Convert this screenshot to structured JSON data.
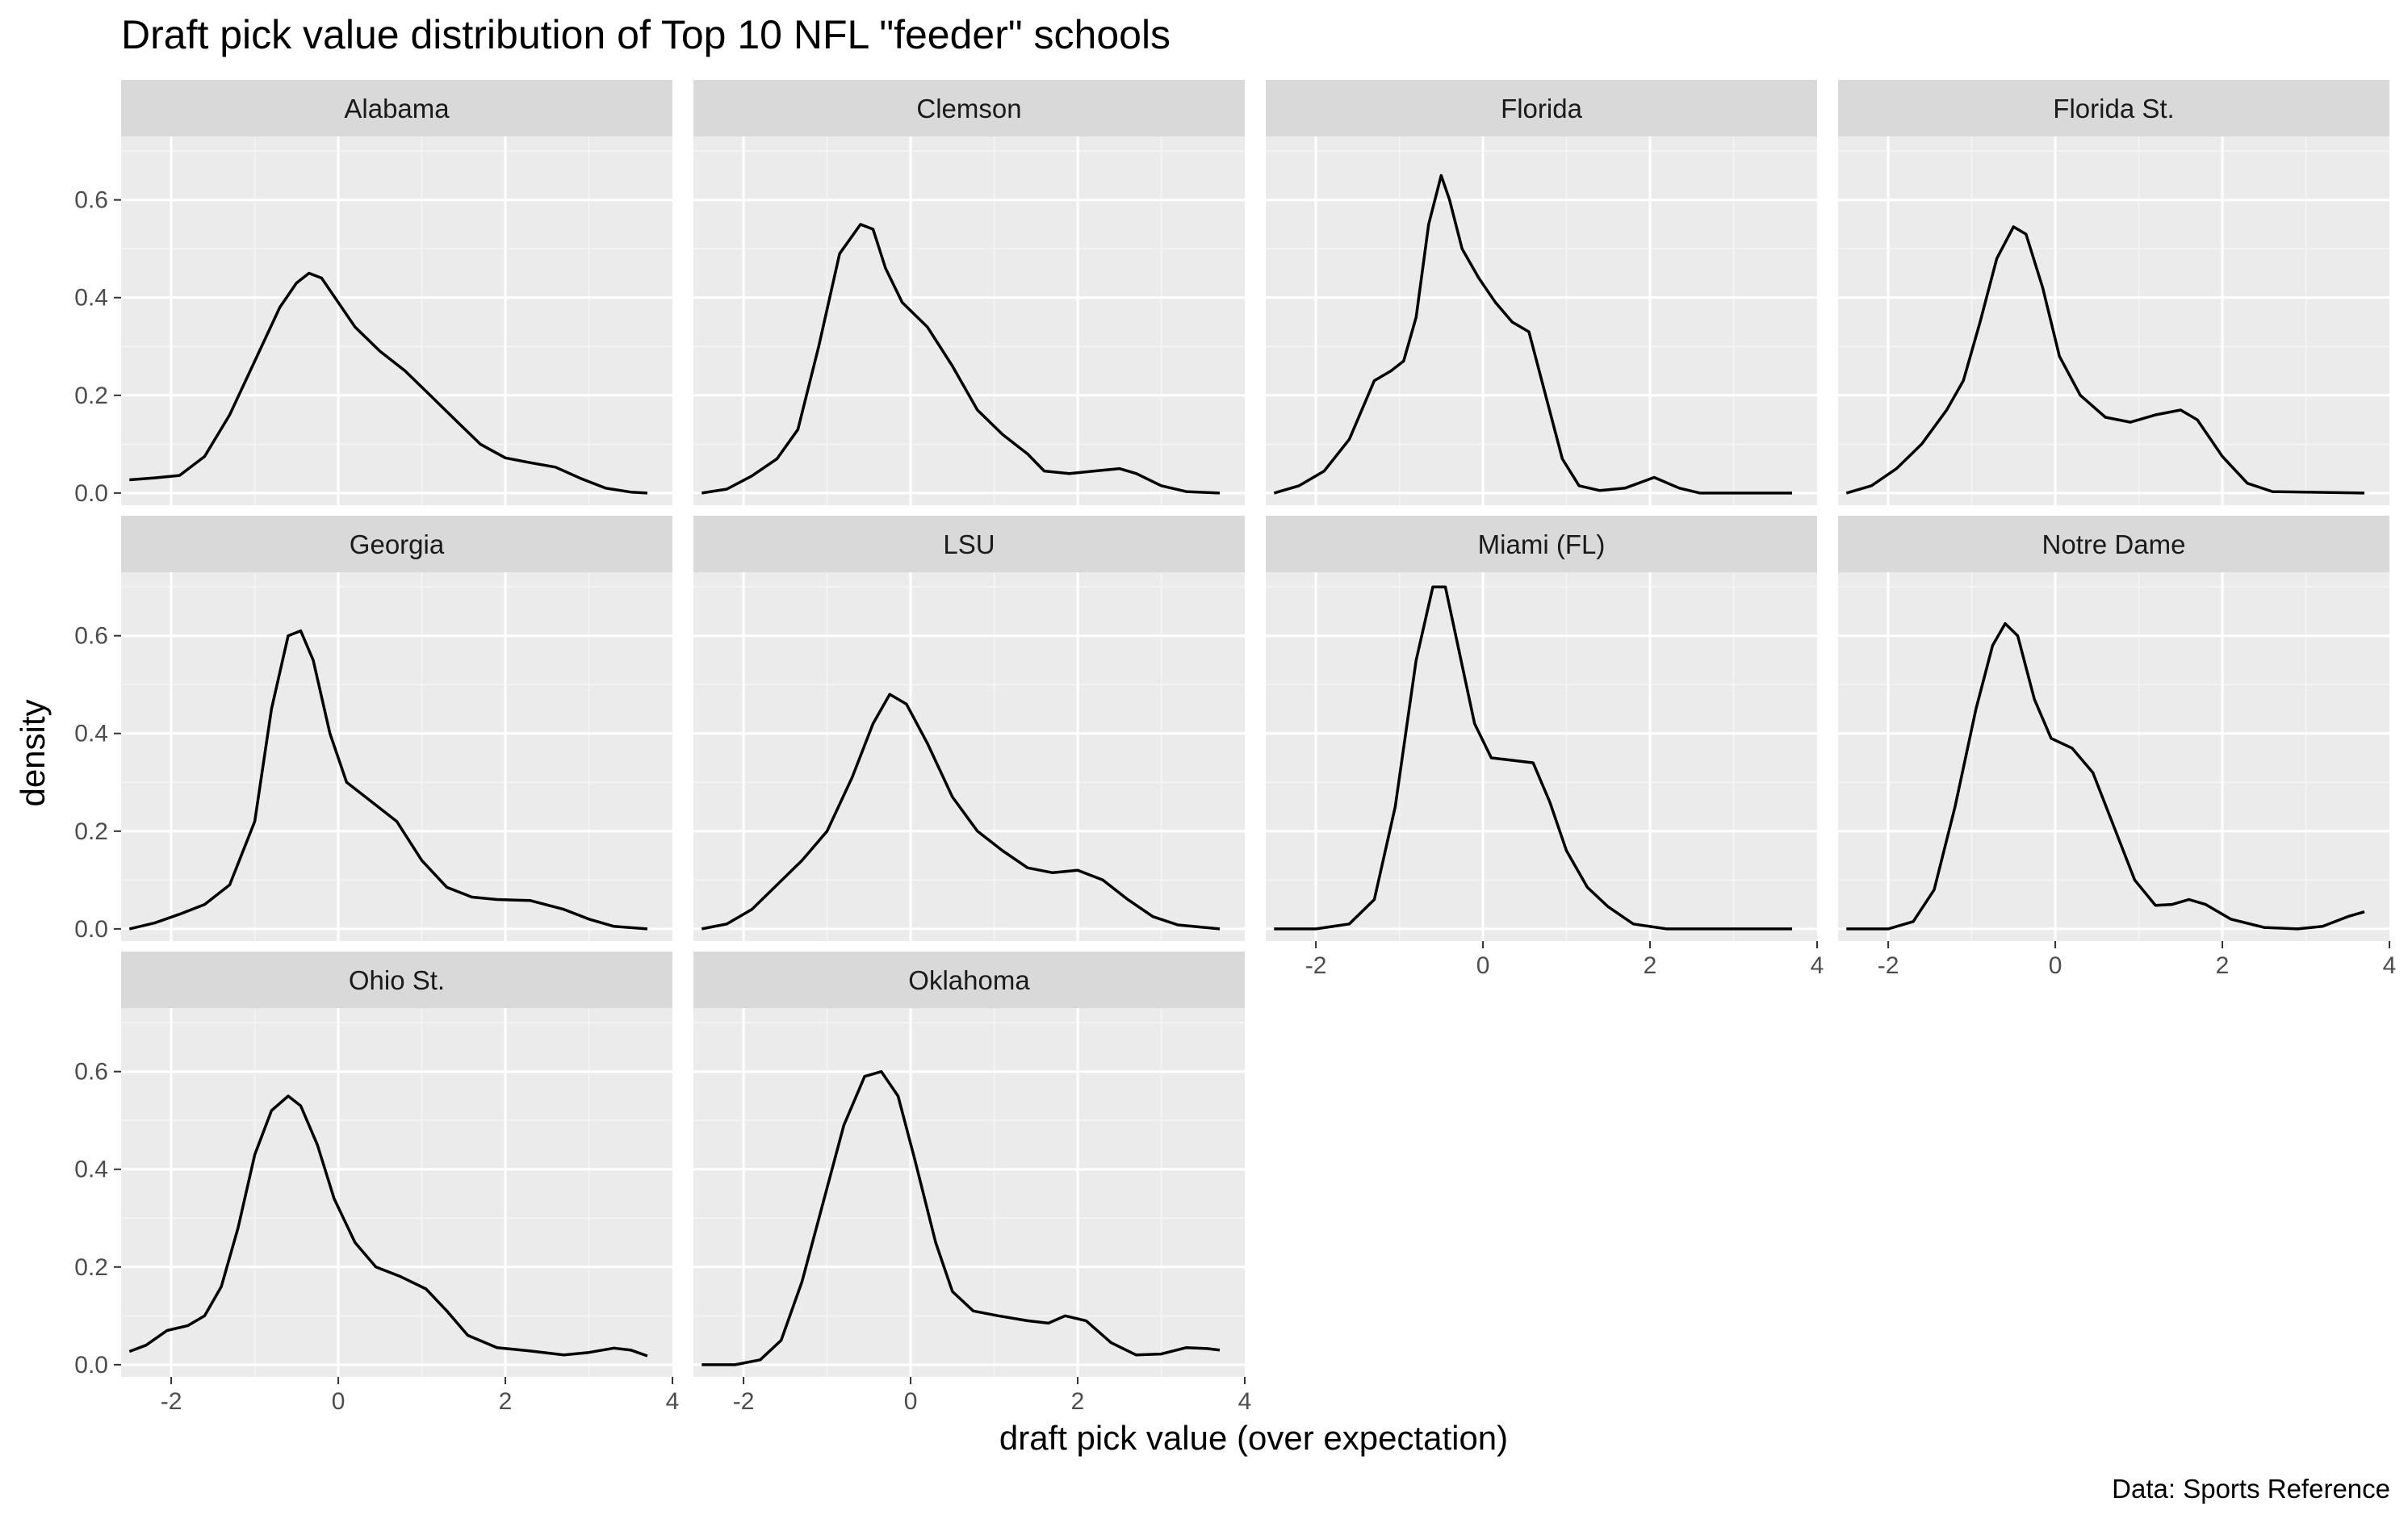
{
  "title": "Draft pick value distribution of Top 10 NFL \"feeder\" schools",
  "caption": "Data: Sports Reference",
  "colors": {
    "panel_background": "#ebebeb",
    "strip_background": "#d9d9d9",
    "grid_major": "#ffffff",
    "grid_minor": "#f5f5f5",
    "line": "#000000",
    "tick_text": "#4d4d4d"
  },
  "chart_data": {
    "type": "line",
    "kind": "density (faceted, 4 columns)",
    "xlabel": "draft pick value (over expectation)",
    "ylabel": "density",
    "xlim": [
      -2.6,
      4.0
    ],
    "ylim": [
      -0.025,
      0.73
    ],
    "x_ticks": [
      -2,
      0,
      2,
      4
    ],
    "x_tick_labels": [
      "-2",
      "0",
      "2",
      "4"
    ],
    "y_ticks": [
      0.0,
      0.2,
      0.4,
      0.6
    ],
    "y_tick_labels": [
      "0.0",
      "0.2",
      "0.4",
      "0.6"
    ],
    "grid": true,
    "legend": "none",
    "series": [
      {
        "name": "Alabama",
        "points": [
          [
            -2.5,
            0.027
          ],
          [
            -2.2,
            0.031
          ],
          [
            -1.9,
            0.036
          ],
          [
            -1.6,
            0.075
          ],
          [
            -1.3,
            0.16
          ],
          [
            -1.0,
            0.27
          ],
          [
            -0.7,
            0.38
          ],
          [
            -0.5,
            0.43
          ],
          [
            -0.35,
            0.45
          ],
          [
            -0.2,
            0.44
          ],
          [
            0.0,
            0.39
          ],
          [
            0.2,
            0.34
          ],
          [
            0.5,
            0.29
          ],
          [
            0.8,
            0.25
          ],
          [
            1.1,
            0.2
          ],
          [
            1.4,
            0.15
          ],
          [
            1.7,
            0.1
          ],
          [
            2.0,
            0.072
          ],
          [
            2.3,
            0.062
          ],
          [
            2.6,
            0.053
          ],
          [
            2.9,
            0.03
          ],
          [
            3.2,
            0.01
          ],
          [
            3.5,
            0.002
          ],
          [
            3.7,
            0.0
          ]
        ]
      },
      {
        "name": "Clemson",
        "points": [
          [
            -2.5,
            0.0
          ],
          [
            -2.2,
            0.008
          ],
          [
            -1.9,
            0.035
          ],
          [
            -1.6,
            0.07
          ],
          [
            -1.35,
            0.13
          ],
          [
            -1.1,
            0.3
          ],
          [
            -0.85,
            0.49
          ],
          [
            -0.6,
            0.55
          ],
          [
            -0.45,
            0.54
          ],
          [
            -0.3,
            0.46
          ],
          [
            -0.1,
            0.39
          ],
          [
            0.2,
            0.34
          ],
          [
            0.5,
            0.26
          ],
          [
            0.8,
            0.17
          ],
          [
            1.1,
            0.12
          ],
          [
            1.4,
            0.08
          ],
          [
            1.6,
            0.045
          ],
          [
            1.9,
            0.04
          ],
          [
            2.2,
            0.045
          ],
          [
            2.5,
            0.05
          ],
          [
            2.7,
            0.04
          ],
          [
            3.0,
            0.015
          ],
          [
            3.3,
            0.003
          ],
          [
            3.7,
            0.0
          ]
        ]
      },
      {
        "name": "Florida",
        "points": [
          [
            -2.5,
            0.0
          ],
          [
            -2.2,
            0.015
          ],
          [
            -1.9,
            0.045
          ],
          [
            -1.6,
            0.11
          ],
          [
            -1.3,
            0.23
          ],
          [
            -1.1,
            0.25
          ],
          [
            -0.95,
            0.27
          ],
          [
            -0.8,
            0.36
          ],
          [
            -0.65,
            0.55
          ],
          [
            -0.5,
            0.65
          ],
          [
            -0.4,
            0.6
          ],
          [
            -0.25,
            0.5
          ],
          [
            -0.05,
            0.44
          ],
          [
            0.15,
            0.39
          ],
          [
            0.35,
            0.35
          ],
          [
            0.55,
            0.33
          ],
          [
            0.75,
            0.2
          ],
          [
            0.95,
            0.07
          ],
          [
            1.15,
            0.015
          ],
          [
            1.4,
            0.005
          ],
          [
            1.7,
            0.01
          ],
          [
            2.05,
            0.032
          ],
          [
            2.35,
            0.01
          ],
          [
            2.6,
            0.0
          ],
          [
            3.7,
            0.0
          ]
        ]
      },
      {
        "name": "Florida St.",
        "points": [
          [
            -2.5,
            0.0
          ],
          [
            -2.2,
            0.015
          ],
          [
            -1.9,
            0.05
          ],
          [
            -1.6,
            0.1
          ],
          [
            -1.3,
            0.17
          ],
          [
            -1.1,
            0.23
          ],
          [
            -0.9,
            0.35
          ],
          [
            -0.7,
            0.48
          ],
          [
            -0.5,
            0.545
          ],
          [
            -0.35,
            0.53
          ],
          [
            -0.15,
            0.42
          ],
          [
            0.05,
            0.28
          ],
          [
            0.3,
            0.2
          ],
          [
            0.6,
            0.155
          ],
          [
            0.9,
            0.145
          ],
          [
            1.2,
            0.16
          ],
          [
            1.5,
            0.17
          ],
          [
            1.7,
            0.15
          ],
          [
            2.0,
            0.075
          ],
          [
            2.3,
            0.02
          ],
          [
            2.6,
            0.003
          ],
          [
            3.7,
            0.0
          ]
        ]
      },
      {
        "name": "Georgia",
        "points": [
          [
            -2.5,
            0.0
          ],
          [
            -2.2,
            0.012
          ],
          [
            -1.9,
            0.03
          ],
          [
            -1.6,
            0.05
          ],
          [
            -1.3,
            0.09
          ],
          [
            -1.0,
            0.22
          ],
          [
            -0.8,
            0.45
          ],
          [
            -0.6,
            0.6
          ],
          [
            -0.45,
            0.61
          ],
          [
            -0.3,
            0.55
          ],
          [
            -0.1,
            0.4
          ],
          [
            0.1,
            0.3
          ],
          [
            0.4,
            0.26
          ],
          [
            0.7,
            0.22
          ],
          [
            1.0,
            0.14
          ],
          [
            1.3,
            0.085
          ],
          [
            1.6,
            0.065
          ],
          [
            1.9,
            0.06
          ],
          [
            2.3,
            0.058
          ],
          [
            2.7,
            0.04
          ],
          [
            3.0,
            0.02
          ],
          [
            3.3,
            0.005
          ],
          [
            3.7,
            0.0
          ]
        ]
      },
      {
        "name": "LSU",
        "points": [
          [
            -2.5,
            0.0
          ],
          [
            -2.2,
            0.01
          ],
          [
            -1.9,
            0.04
          ],
          [
            -1.6,
            0.09
          ],
          [
            -1.3,
            0.14
          ],
          [
            -1.0,
            0.2
          ],
          [
            -0.7,
            0.31
          ],
          [
            -0.45,
            0.42
          ],
          [
            -0.25,
            0.48
          ],
          [
            -0.05,
            0.46
          ],
          [
            0.2,
            0.38
          ],
          [
            0.5,
            0.27
          ],
          [
            0.8,
            0.2
          ],
          [
            1.1,
            0.16
          ],
          [
            1.4,
            0.125
          ],
          [
            1.7,
            0.115
          ],
          [
            2.0,
            0.12
          ],
          [
            2.3,
            0.1
          ],
          [
            2.6,
            0.06
          ],
          [
            2.9,
            0.025
          ],
          [
            3.2,
            0.008
          ],
          [
            3.7,
            0.0
          ]
        ]
      },
      {
        "name": "Miami (FL)",
        "points": [
          [
            -2.5,
            0.0
          ],
          [
            -2.0,
            0.0
          ],
          [
            -1.6,
            0.01
          ],
          [
            -1.3,
            0.06
          ],
          [
            -1.05,
            0.25
          ],
          [
            -0.8,
            0.55
          ],
          [
            -0.6,
            0.7
          ],
          [
            -0.45,
            0.7
          ],
          [
            -0.3,
            0.58
          ],
          [
            -0.1,
            0.42
          ],
          [
            0.1,
            0.35
          ],
          [
            0.35,
            0.345
          ],
          [
            0.6,
            0.34
          ],
          [
            0.8,
            0.26
          ],
          [
            1.0,
            0.16
          ],
          [
            1.25,
            0.085
          ],
          [
            1.5,
            0.045
          ],
          [
            1.8,
            0.01
          ],
          [
            2.2,
            0.0
          ],
          [
            3.7,
            0.0
          ]
        ]
      },
      {
        "name": "Notre Dame",
        "points": [
          [
            -2.5,
            0.0
          ],
          [
            -2.0,
            0.0
          ],
          [
            -1.7,
            0.015
          ],
          [
            -1.45,
            0.08
          ],
          [
            -1.2,
            0.25
          ],
          [
            -0.95,
            0.45
          ],
          [
            -0.75,
            0.58
          ],
          [
            -0.6,
            0.625
          ],
          [
            -0.45,
            0.6
          ],
          [
            -0.25,
            0.47
          ],
          [
            -0.05,
            0.39
          ],
          [
            0.2,
            0.37
          ],
          [
            0.45,
            0.32
          ],
          [
            0.7,
            0.21
          ],
          [
            0.95,
            0.1
          ],
          [
            1.2,
            0.048
          ],
          [
            1.4,
            0.05
          ],
          [
            1.6,
            0.06
          ],
          [
            1.8,
            0.05
          ],
          [
            2.1,
            0.02
          ],
          [
            2.5,
            0.003
          ],
          [
            2.9,
            0.0
          ],
          [
            3.2,
            0.005
          ],
          [
            3.5,
            0.025
          ],
          [
            3.7,
            0.035
          ]
        ]
      },
      {
        "name": "Ohio St.",
        "points": [
          [
            -2.5,
            0.027
          ],
          [
            -2.3,
            0.04
          ],
          [
            -2.05,
            0.07
          ],
          [
            -1.8,
            0.08
          ],
          [
            -1.6,
            0.1
          ],
          [
            -1.4,
            0.16
          ],
          [
            -1.2,
            0.28
          ],
          [
            -1.0,
            0.43
          ],
          [
            -0.8,
            0.52
          ],
          [
            -0.6,
            0.55
          ],
          [
            -0.45,
            0.53
          ],
          [
            -0.25,
            0.45
          ],
          [
            -0.05,
            0.34
          ],
          [
            0.2,
            0.25
          ],
          [
            0.45,
            0.2
          ],
          [
            0.75,
            0.18
          ],
          [
            1.05,
            0.155
          ],
          [
            1.3,
            0.11
          ],
          [
            1.55,
            0.06
          ],
          [
            1.9,
            0.035
          ],
          [
            2.3,
            0.028
          ],
          [
            2.7,
            0.02
          ],
          [
            3.0,
            0.025
          ],
          [
            3.3,
            0.034
          ],
          [
            3.5,
            0.03
          ],
          [
            3.7,
            0.018
          ]
        ]
      },
      {
        "name": "Oklahoma",
        "points": [
          [
            -2.5,
            0.0
          ],
          [
            -2.1,
            0.0
          ],
          [
            -1.8,
            0.01
          ],
          [
            -1.55,
            0.05
          ],
          [
            -1.3,
            0.17
          ],
          [
            -1.05,
            0.33
          ],
          [
            -0.8,
            0.49
          ],
          [
            -0.55,
            0.59
          ],
          [
            -0.35,
            0.6
          ],
          [
            -0.15,
            0.55
          ],
          [
            0.05,
            0.42
          ],
          [
            0.3,
            0.25
          ],
          [
            0.5,
            0.15
          ],
          [
            0.75,
            0.11
          ],
          [
            1.05,
            0.1
          ],
          [
            1.4,
            0.09
          ],
          [
            1.65,
            0.085
          ],
          [
            1.85,
            0.1
          ],
          [
            2.1,
            0.09
          ],
          [
            2.4,
            0.045
          ],
          [
            2.7,
            0.02
          ],
          [
            3.0,
            0.022
          ],
          [
            3.3,
            0.035
          ],
          [
            3.55,
            0.033
          ],
          [
            3.7,
            0.03
          ]
        ]
      }
    ]
  }
}
